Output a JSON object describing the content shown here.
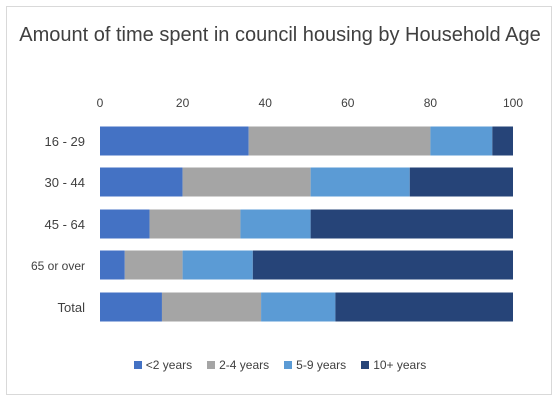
{
  "chart_data": {
    "type": "bar",
    "orientation": "horizontal",
    "stacked": true,
    "title": "Amount of time spent in council housing by Household Age",
    "categories": [
      "16 - 29",
      "30 - 44",
      "45 - 64",
      "65 or over",
      "Total"
    ],
    "series": [
      {
        "name": "<2 years",
        "color": "#4472c4",
        "values": [
          36,
          20,
          12,
          6,
          15
        ]
      },
      {
        "name": "2-4 years",
        "color": "#a5a5a5",
        "values": [
          44,
          31,
          22,
          14,
          24
        ]
      },
      {
        "name": "5-9 years",
        "color": "#5b9bd5",
        "values": [
          15,
          24,
          17,
          17,
          18
        ]
      },
      {
        "name": "10+ years",
        "color": "#264478",
        "values": [
          5,
          25,
          49,
          63,
          43
        ]
      }
    ],
    "xlim": [
      0,
      100
    ],
    "xticks": [
      0,
      20,
      40,
      60,
      80,
      100
    ],
    "axis_position": "top",
    "grid": false,
    "legend_position": "bottom"
  }
}
